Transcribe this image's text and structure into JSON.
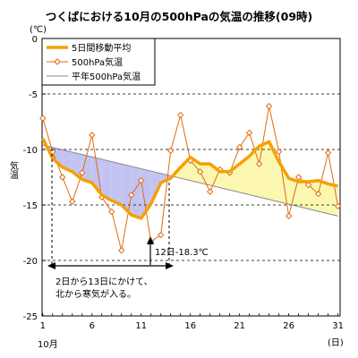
{
  "chart_data": {
    "type": "line",
    "title": "つくばにおける10月の500hPaの気温の推移(09時)",
    "y_unit_label": "(℃)",
    "ylabel": "気温",
    "x_unit_label": "(日)",
    "x_month_label": "10月",
    "ylim": [
      -25,
      0
    ],
    "y_ticks": [
      0,
      -5,
      -10,
      -15,
      -20,
      -25
    ],
    "xlim": [
      1,
      31
    ],
    "x_ticks": [
      1,
      6,
      11,
      16,
      21,
      26,
      31
    ],
    "grid": "horizontal-dashed",
    "legend_position": "top-left",
    "colors": {
      "ma": "#f5a000",
      "daily": "#e06b10",
      "normal": "#888888",
      "cold_fill": "#c3c3f2",
      "warm_fill": "#fbf7b0"
    },
    "series": [
      {
        "name": "5日間移動平均",
        "key": "ma",
        "x": [
          1,
          2,
          3,
          4,
          5,
          6,
          7,
          8,
          9,
          10,
          11,
          12,
          13,
          14,
          15,
          16,
          17,
          18,
          19,
          20,
          21,
          22,
          23,
          24,
          25,
          26,
          27,
          28,
          29,
          30,
          31
        ],
        "values": [
          -9.0,
          -10.8,
          -11.6,
          -12.0,
          -12.7,
          -13.0,
          -14.1,
          -14.6,
          -15.0,
          -15.9,
          -16.2,
          -14.9,
          -13.0,
          -12.6,
          -11.6,
          -10.7,
          -11.3,
          -11.3,
          -12.0,
          -12.0,
          -11.3,
          -10.6,
          -9.7,
          -9.3,
          -11.1,
          -12.6,
          -12.9,
          -12.9,
          -12.8,
          -13.1,
          -13.3
        ]
      },
      {
        "name": "500hPa気温",
        "key": "daily",
        "x": [
          1,
          2,
          3,
          4,
          5,
          6,
          7,
          8,
          9,
          10,
          11,
          12,
          13,
          14,
          15,
          16,
          17,
          18,
          19,
          20,
          21,
          22,
          23,
          24,
          25,
          26,
          27,
          28,
          29,
          30,
          31
        ],
        "values": [
          -7.2,
          -10.2,
          -12.5,
          -14.7,
          -12.1,
          -8.7,
          -14.3,
          -15.6,
          -19.1,
          -14.1,
          -12.8,
          -18.3,
          -17.7,
          -10.1,
          -6.9,
          -11.0,
          -12.0,
          -13.8,
          -11.8,
          -12.1,
          -9.8,
          -8.5,
          -11.3,
          -6.1,
          -10.2,
          -16.0,
          -12.5,
          -13.2,
          -14.0,
          -10.3,
          -15.1
        ]
      },
      {
        "name": "平年500hPa気温",
        "key": "normal",
        "x": [
          1,
          31
        ],
        "values": [
          -9.6,
          -16.0
        ]
      }
    ],
    "annotations": {
      "point_label": "12日-18.3℃",
      "range_note_line1": "2日から13日にかけて、",
      "range_note_line2": "北から寒気が入る。"
    }
  }
}
